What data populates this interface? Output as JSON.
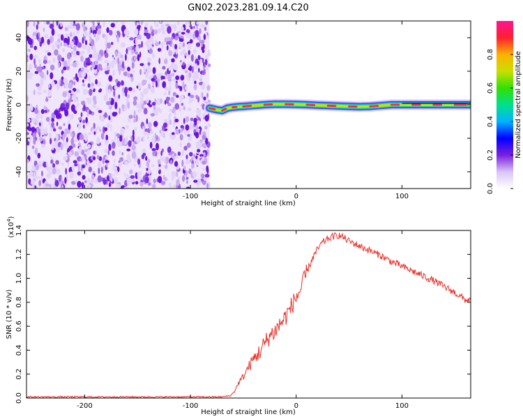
{
  "title": "GN02.2023.281.09.14.C20",
  "chart_data": [
    {
      "type": "heatmap",
      "xlabel": "Height of straight line (km)",
      "ylabel": "Frequency (Hz)",
      "xlim": [
        -255,
        165
      ],
      "ylim": [
        -50,
        50
      ],
      "x_ticks": [
        -200,
        -100,
        0,
        100
      ],
      "x_tick_labels": [
        "-200",
        "-100",
        "0",
        "100"
      ],
      "y_ticks": [
        -40,
        -20,
        0,
        20,
        40
      ],
      "y_tick_labels": [
        "-40",
        "-20",
        "0",
        "20",
        "40"
      ],
      "noise_region_x": [
        -255,
        -82
      ],
      "signal_ridge": {
        "x": [
          -82,
          -75,
          -70,
          -65,
          -60,
          -55,
          -50,
          -40,
          -30,
          -20,
          -10,
          0,
          10,
          20,
          30,
          40,
          50,
          60,
          70,
          80,
          90,
          100,
          110,
          120,
          130,
          140,
          150,
          165
        ],
        "y": [
          -2,
          -3,
          -3.5,
          -2,
          -1.5,
          -1.2,
          -1,
          -0.5,
          0,
          0.3,
          0.3,
          0.2,
          0,
          -0.3,
          -0.5,
          -0.8,
          -1,
          -1.2,
          -1,
          -0.5,
          0,
          0,
          0,
          0,
          0,
          0,
          0,
          0
        ]
      },
      "colorbar": {
        "label": "Normalized spectral amplitude",
        "ticks": [
          0.0,
          0.2,
          0.4,
          0.6,
          0.8
        ],
        "tick_labels": [
          "0.0",
          "0.2",
          "0.4",
          "0.6",
          "0.8"
        ],
        "range": [
          0,
          1
        ],
        "colors": [
          "#ffffff",
          "#d9c4f5",
          "#7b1fe0",
          "#0000ff",
          "#00b4ff",
          "#00e08c",
          "#33e000",
          "#c8e000",
          "#ffb000",
          "#ff2030",
          "#ff1493"
        ]
      }
    },
    {
      "type": "line",
      "xlabel": "Height of straight line (km)",
      "ylabel": "SNR (10 * v/v)",
      "y_multiplier_label": "(x10",
      "y_multiplier_exp": "4",
      "xlim": [
        -255,
        165
      ],
      "ylim": [
        0,
        1.4
      ],
      "x_ticks": [
        -200,
        -100,
        0,
        100
      ],
      "x_tick_labels": [
        "-200",
        "-100",
        "0",
        "100"
      ],
      "y_ticks": [
        0.0,
        0.2,
        0.4,
        0.6,
        0.8,
        1.0,
        1.2,
        1.4
      ],
      "y_tick_labels": [
        "0.0",
        "0.2",
        "0.4",
        "0.6",
        "0.8",
        "1.0",
        "1.2",
        "1.4"
      ],
      "series": [
        {
          "color": "#e8302a",
          "x": [
            -255,
            -200,
            -150,
            -100,
            -70,
            -62,
            -58,
            -55,
            -50,
            -45,
            -40,
            -35,
            -30,
            -25,
            -20,
            -15,
            -10,
            -5,
            0,
            5,
            10,
            15,
            20,
            25,
            30,
            35,
            40,
            45,
            50,
            60,
            70,
            80,
            90,
            100,
            110,
            120,
            130,
            140,
            150,
            160,
            165
          ],
          "y": [
            0.01,
            0.01,
            0.01,
            0.01,
            0.01,
            0.02,
            0.06,
            0.12,
            0.18,
            0.26,
            0.33,
            0.38,
            0.45,
            0.52,
            0.56,
            0.62,
            0.68,
            0.76,
            0.84,
            0.92,
            1.05,
            1.16,
            1.24,
            1.3,
            1.33,
            1.35,
            1.36,
            1.34,
            1.31,
            1.27,
            1.23,
            1.19,
            1.14,
            1.1,
            1.06,
            1.02,
            0.98,
            0.93,
            0.88,
            0.82,
            0.82
          ]
        }
      ]
    }
  ]
}
